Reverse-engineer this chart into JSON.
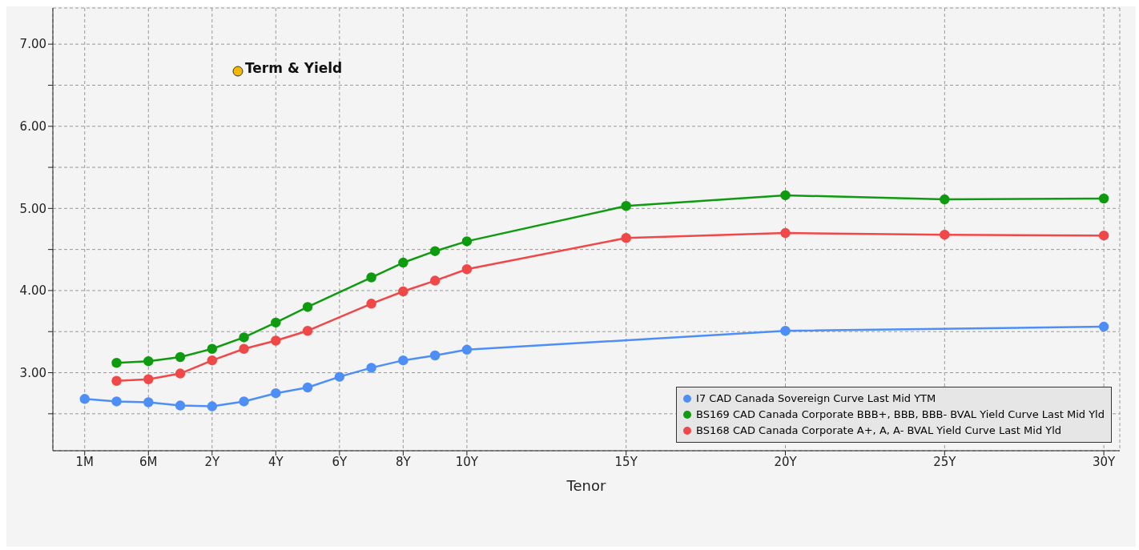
{
  "chart_data": {
    "type": "line",
    "xlabel": "Tenor",
    "categories": [
      "1M",
      null,
      "6M",
      null,
      "2Y",
      null,
      "4Y",
      null,
      "6Y",
      null,
      "8Y",
      null,
      "10Y",
      null,
      null,
      null,
      null,
      "15Y",
      null,
      null,
      null,
      null,
      "20Y",
      null,
      null,
      null,
      null,
      "25Y",
      null,
      null,
      null,
      null,
      "30Y"
    ],
    "series": [
      {
        "name": "I7 CAD Canada Sovereign Curve Last Mid YTM",
        "color": "#4d8ff7",
        "values": [
          2.68,
          2.65,
          2.64,
          2.6,
          2.59,
          2.65,
          2.75,
          2.82,
          2.95,
          3.06,
          3.15,
          3.21,
          3.28,
          null,
          null,
          null,
          null,
          null,
          null,
          null,
          null,
          null,
          3.51,
          null,
          null,
          null,
          null,
          null,
          null,
          null,
          null,
          null,
          3.56
        ]
      },
      {
        "name": "BS169 CAD Canada Corporate BBB+, BBB, BBB- BVAL Yield Curve Last Mid Yld",
        "color": "#0f9b0f",
        "values": [
          null,
          3.12,
          3.14,
          3.19,
          3.29,
          3.43,
          3.61,
          3.8,
          null,
          4.16,
          4.34,
          4.48,
          4.6,
          null,
          null,
          null,
          null,
          5.03,
          null,
          null,
          null,
          null,
          5.16,
          null,
          null,
          null,
          null,
          5.11,
          null,
          null,
          null,
          null,
          5.12
        ]
      },
      {
        "name": "BS168 CAD Canada Corporate A+, A, A- BVAL Yield Curve Last Mid Yld",
        "color": "#f04848",
        "values": [
          null,
          2.9,
          2.92,
          2.99,
          3.15,
          3.29,
          3.39,
          3.51,
          null,
          3.84,
          3.99,
          4.12,
          4.26,
          null,
          null,
          null,
          null,
          4.64,
          null,
          null,
          null,
          null,
          4.7,
          null,
          null,
          null,
          null,
          4.68,
          null,
          null,
          null,
          null,
          4.67
        ]
      }
    ],
    "ylim": [
      2.05,
      7.44
    ],
    "yticks": [
      {
        "value": 2.5,
        "label": null
      },
      {
        "value": 3,
        "label": "3.00"
      },
      {
        "value": 3.5,
        "label": null
      },
      {
        "value": 4,
        "label": "4.00"
      },
      {
        "value": 4.5,
        "label": null
      },
      {
        "value": 5,
        "label": "5.00"
      },
      {
        "value": 5.5,
        "label": null
      },
      {
        "value": 6,
        "label": "6.00"
      },
      {
        "value": 6.5,
        "label": null
      },
      {
        "value": 7,
        "label": "7.00"
      }
    ],
    "annotations": [
      "Term & Yield"
    ],
    "grid": true,
    "legend": "bottom right",
    "marker": "circle",
    "line_style": "solid"
  }
}
